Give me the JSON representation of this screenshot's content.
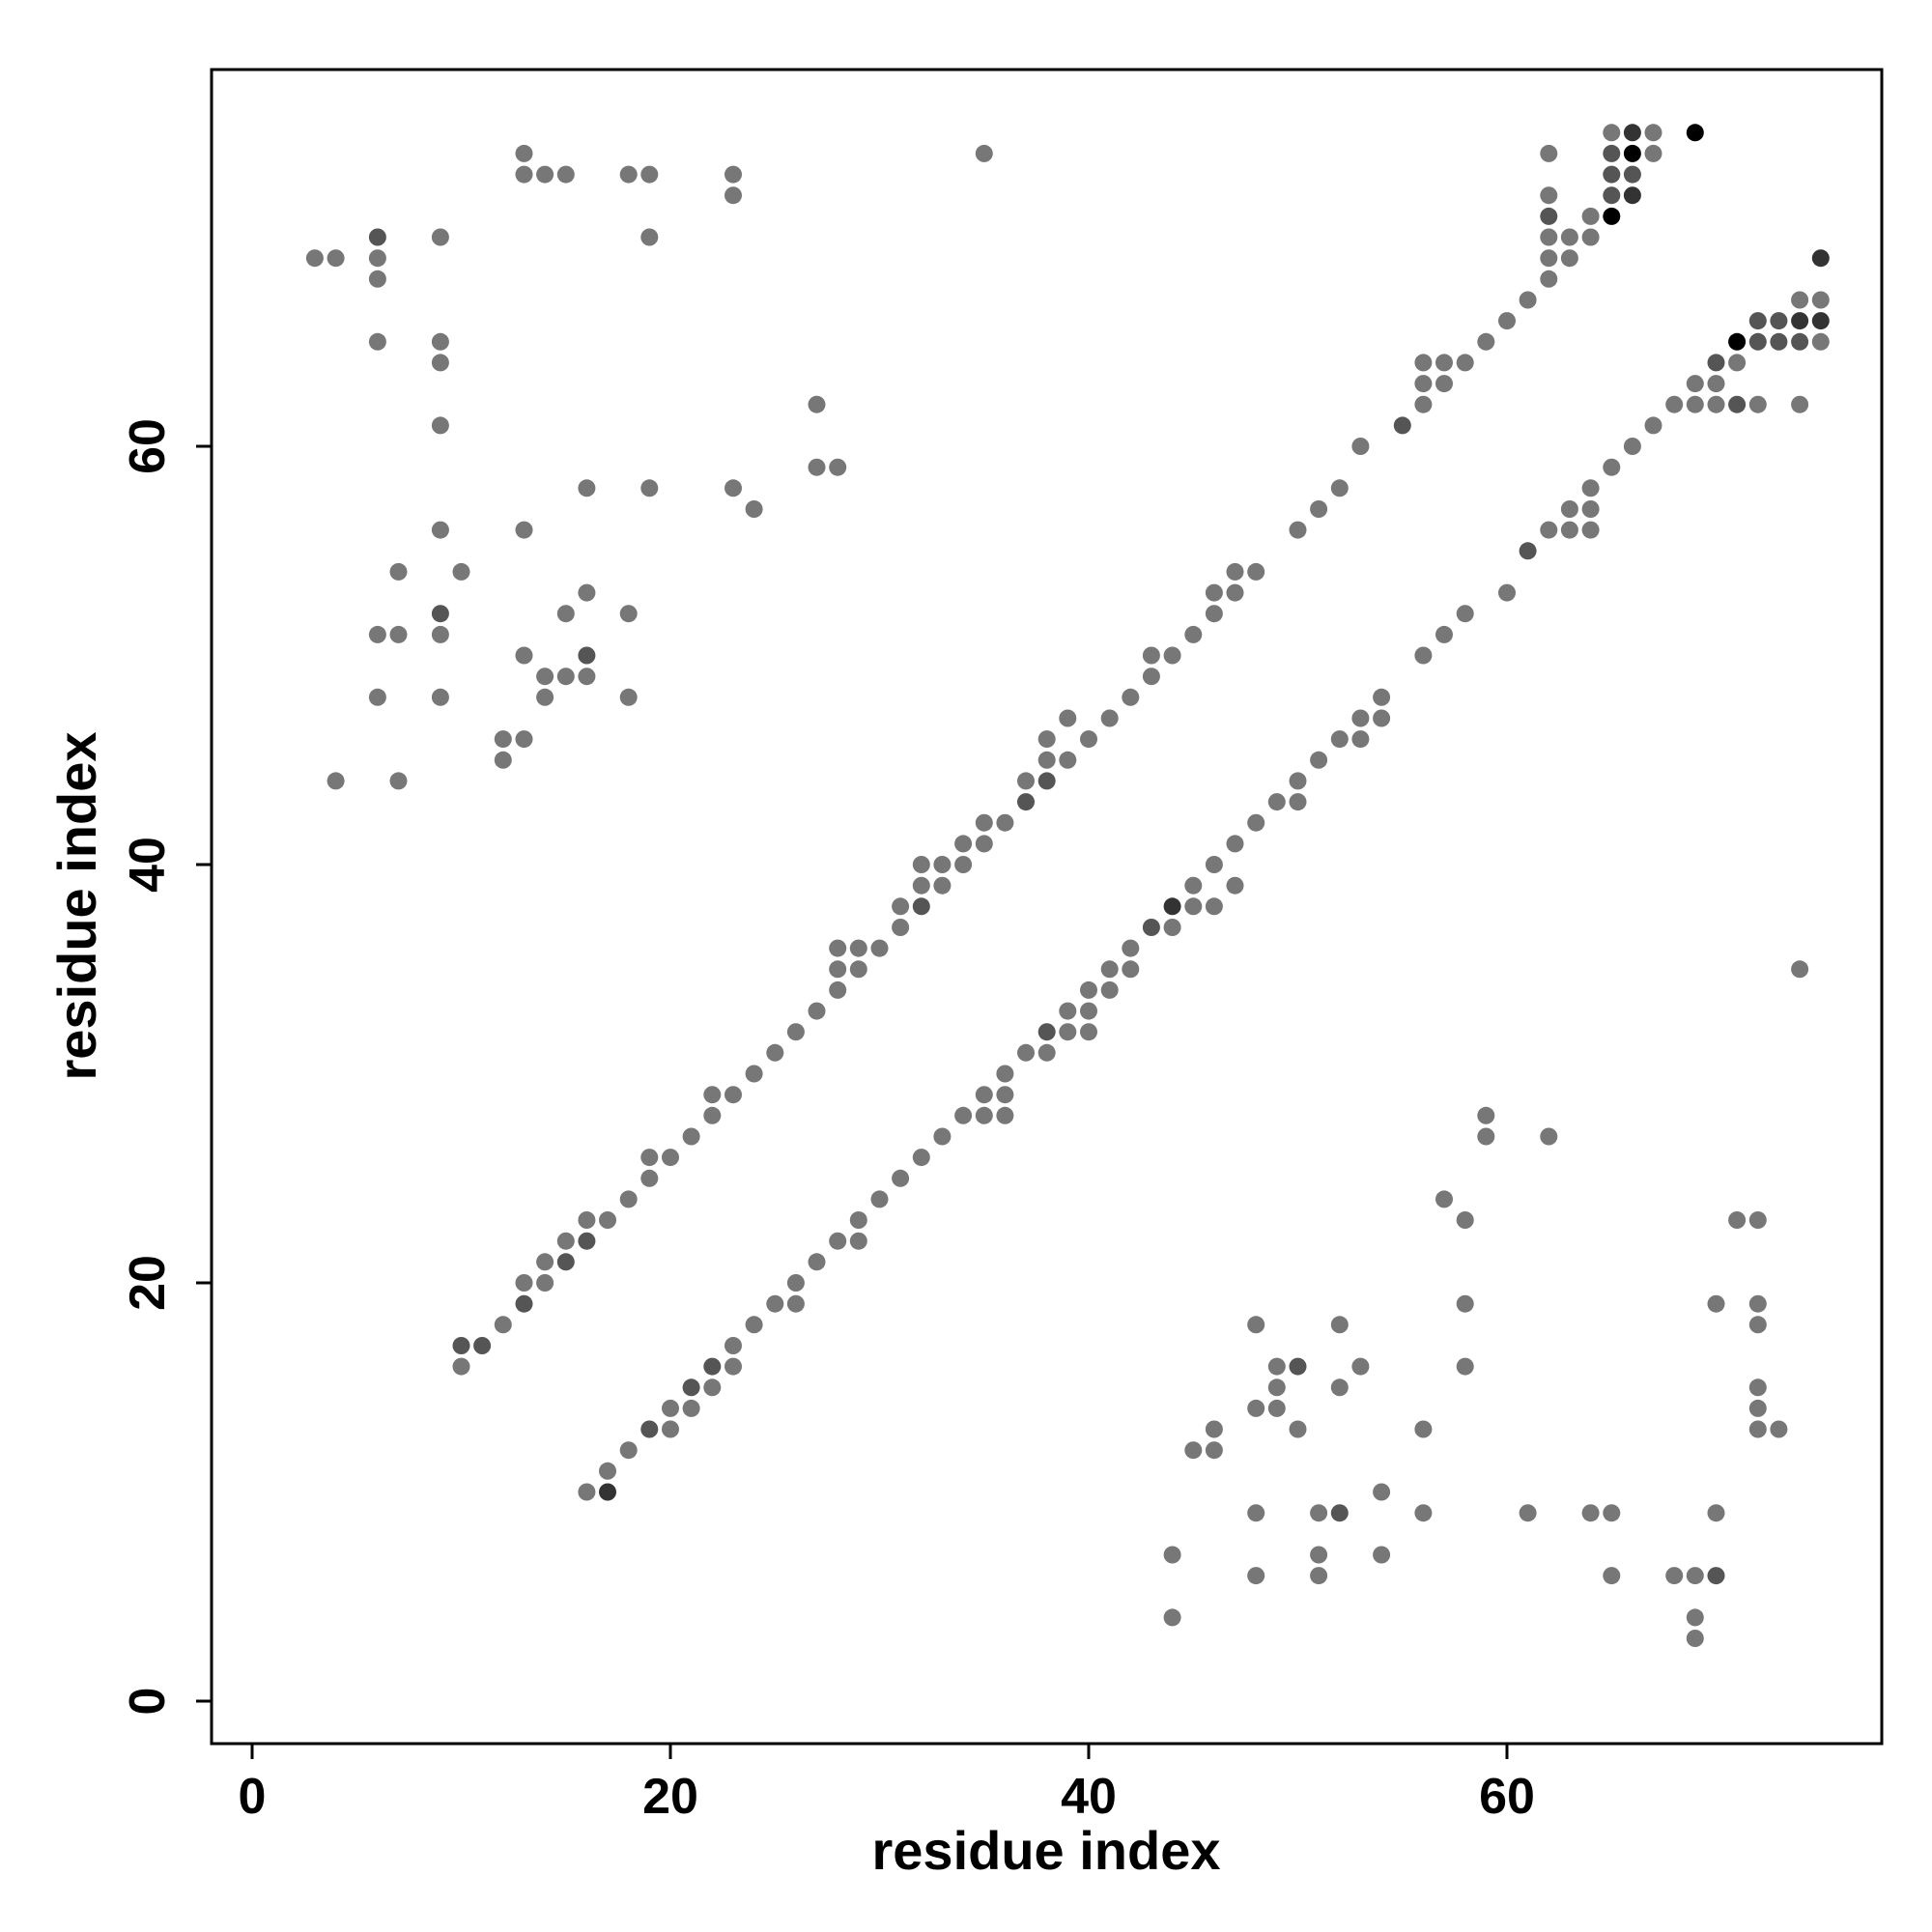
{
  "chart_data": {
    "type": "scatter",
    "title": "",
    "xlabel": "residue index",
    "ylabel": "residue index",
    "xlim": [
      -2,
      76
    ],
    "ylim": [
      -2,
      78
    ],
    "xticks": [
      0,
      20,
      40,
      60
    ],
    "yticks": [
      0,
      20,
      40,
      60
    ],
    "grid": false,
    "legend": "none",
    "colors": {
      "default": "#777777",
      "dark": "#555555",
      "darker": "#333333",
      "darkest": "#000000"
    },
    "points": [
      [
        10,
        17,
        1
      ],
      [
        10,
        16,
        0
      ],
      [
        11,
        17,
        1
      ],
      [
        12,
        18,
        0
      ],
      [
        13,
        19,
        1
      ],
      [
        13,
        20,
        0
      ],
      [
        14,
        20,
        0
      ],
      [
        14,
        21,
        0
      ],
      [
        15,
        21,
        1
      ],
      [
        15,
        22,
        0
      ],
      [
        16,
        22,
        1
      ],
      [
        16,
        23,
        0
      ],
      [
        17,
        23,
        0
      ],
      [
        18,
        24,
        0
      ],
      [
        19,
        25,
        0
      ],
      [
        19,
        26,
        0
      ],
      [
        20,
        26,
        0
      ],
      [
        21,
        27,
        0
      ],
      [
        22,
        28,
        0
      ],
      [
        22,
        29,
        0
      ],
      [
        23,
        29,
        0
      ],
      [
        24,
        30,
        0
      ],
      [
        25,
        31,
        0
      ],
      [
        26,
        32,
        0
      ],
      [
        27,
        33,
        0
      ],
      [
        28,
        34,
        0
      ],
      [
        28,
        35,
        0
      ],
      [
        28,
        36,
        0
      ],
      [
        29,
        35,
        0
      ],
      [
        29,
        36,
        0
      ],
      [
        30,
        36,
        0
      ],
      [
        31,
        37,
        0
      ],
      [
        31,
        38,
        0
      ],
      [
        32,
        38,
        1
      ],
      [
        32,
        39,
        0
      ],
      [
        32,
        40,
        0
      ],
      [
        33,
        39,
        0
      ],
      [
        33,
        40,
        0
      ],
      [
        34,
        40,
        0
      ],
      [
        34,
        41,
        0
      ],
      [
        35,
        41,
        0
      ],
      [
        35,
        42,
        0
      ],
      [
        36,
        42,
        0
      ],
      [
        37,
        43,
        1
      ],
      [
        37,
        44,
        0
      ],
      [
        38,
        44,
        1
      ],
      [
        38,
        45,
        0
      ],
      [
        38,
        46,
        0
      ],
      [
        39,
        45,
        0
      ],
      [
        39,
        47,
        0
      ],
      [
        40,
        46,
        0
      ],
      [
        41,
        47,
        0
      ],
      [
        42,
        48,
        0
      ],
      [
        43,
        49,
        0
      ],
      [
        43,
        50,
        0
      ],
      [
        44,
        50,
        0
      ],
      [
        45,
        51,
        0
      ],
      [
        46,
        52,
        0
      ],
      [
        46,
        53,
        0
      ],
      [
        47,
        53,
        0
      ],
      [
        47,
        54,
        0
      ],
      [
        48,
        54,
        0
      ],
      [
        50,
        56,
        0
      ],
      [
        51,
        57,
        0
      ],
      [
        52,
        58,
        0
      ],
      [
        53,
        60,
        0
      ],
      [
        55,
        61,
        1
      ],
      [
        56,
        62,
        0
      ],
      [
        56,
        63,
        0
      ],
      [
        56,
        64,
        0
      ],
      [
        57,
        63,
        0
      ],
      [
        57,
        64,
        0
      ],
      [
        58,
        64,
        0
      ],
      [
        59,
        65,
        0
      ],
      [
        60,
        66,
        0
      ],
      [
        61,
        67,
        0
      ],
      [
        62,
        68,
        0
      ],
      [
        62,
        69,
        0
      ],
      [
        62,
        70,
        0
      ],
      [
        62,
        71,
        1
      ],
      [
        62,
        72,
        0
      ],
      [
        62,
        74,
        0
      ],
      [
        63,
        69,
        0
      ],
      [
        63,
        70,
        0
      ],
      [
        64,
        70,
        0
      ],
      [
        64,
        71,
        0
      ],
      [
        65,
        71,
        3
      ],
      [
        65,
        72,
        1
      ],
      [
        65,
        73,
        1
      ],
      [
        65,
        74,
        1
      ],
      [
        65,
        75,
        0
      ],
      [
        66,
        72,
        2
      ],
      [
        66,
        73,
        1
      ],
      [
        66,
        74,
        3
      ],
      [
        66,
        75,
        2
      ],
      [
        67,
        74,
        0
      ],
      [
        67,
        75,
        0
      ],
      [
        69,
        75,
        3
      ],
      [
        16,
        10,
        0
      ],
      [
        17,
        10,
        2
      ],
      [
        17,
        11,
        0
      ],
      [
        18,
        12,
        0
      ],
      [
        19,
        13,
        1
      ],
      [
        20,
        13,
        0
      ],
      [
        20,
        14,
        0
      ],
      [
        21,
        14,
        0
      ],
      [
        21,
        15,
        1
      ],
      [
        22,
        15,
        0
      ],
      [
        22,
        16,
        1
      ],
      [
        23,
        16,
        0
      ],
      [
        23,
        17,
        0
      ],
      [
        24,
        18,
        0
      ],
      [
        25,
        19,
        0
      ],
      [
        26,
        19,
        0
      ],
      [
        26,
        20,
        0
      ],
      [
        27,
        21,
        0
      ],
      [
        28,
        22,
        0
      ],
      [
        29,
        22,
        0
      ],
      [
        29,
        23,
        0
      ],
      [
        30,
        24,
        0
      ],
      [
        31,
        25,
        0
      ],
      [
        32,
        26,
        0
      ],
      [
        33,
        27,
        0
      ],
      [
        34,
        28,
        0
      ],
      [
        35,
        28,
        0
      ],
      [
        35,
        29,
        0
      ],
      [
        36,
        28,
        0
      ],
      [
        36,
        29,
        0
      ],
      [
        36,
        30,
        0
      ],
      [
        37,
        31,
        0
      ],
      [
        38,
        31,
        0
      ],
      [
        38,
        32,
        1
      ],
      [
        39,
        32,
        0
      ],
      [
        39,
        33,
        0
      ],
      [
        40,
        32,
        0
      ],
      [
        40,
        33,
        0
      ],
      [
        40,
        34,
        0
      ],
      [
        41,
        34,
        0
      ],
      [
        41,
        35,
        0
      ],
      [
        42,
        35,
        0
      ],
      [
        42,
        36,
        0
      ],
      [
        43,
        37,
        1
      ],
      [
        44,
        37,
        0
      ],
      [
        44,
        38,
        2
      ],
      [
        45,
        38,
        0
      ],
      [
        45,
        39,
        0
      ],
      [
        46,
        38,
        0
      ],
      [
        46,
        40,
        0
      ],
      [
        47,
        39,
        0
      ],
      [
        47,
        41,
        0
      ],
      [
        48,
        42,
        0
      ],
      [
        49,
        43,
        0
      ],
      [
        50,
        43,
        0
      ],
      [
        50,
        44,
        0
      ],
      [
        51,
        45,
        0
      ],
      [
        52,
        46,
        0
      ],
      [
        53,
        46,
        0
      ],
      [
        53,
        47,
        0
      ],
      [
        54,
        47,
        0
      ],
      [
        54,
        48,
        0
      ],
      [
        56,
        50,
        0
      ],
      [
        57,
        51,
        0
      ],
      [
        58,
        52,
        0
      ],
      [
        60,
        53,
        0
      ],
      [
        61,
        55,
        1
      ],
      [
        62,
        56,
        0
      ],
      [
        63,
        56,
        0
      ],
      [
        63,
        57,
        0
      ],
      [
        64,
        56,
        0
      ],
      [
        64,
        57,
        0
      ],
      [
        64,
        58,
        0
      ],
      [
        65,
        59,
        0
      ],
      [
        66,
        60,
        0
      ],
      [
        67,
        61,
        0
      ],
      [
        68,
        62,
        0
      ],
      [
        69,
        62,
        0
      ],
      [
        69,
        63,
        0
      ],
      [
        70,
        62,
        0
      ],
      [
        70,
        63,
        0
      ],
      [
        70,
        64,
        1
      ],
      [
        71,
        62,
        1
      ],
      [
        71,
        64,
        0
      ],
      [
        71,
        65,
        3
      ],
      [
        72,
        62,
        0
      ],
      [
        72,
        65,
        1
      ],
      [
        72,
        66,
        1
      ],
      [
        73,
        65,
        1
      ],
      [
        73,
        66,
        1
      ],
      [
        74,
        62,
        0
      ],
      [
        74,
        65,
        1
      ],
      [
        74,
        66,
        2
      ],
      [
        74,
        67,
        0
      ],
      [
        75,
        65,
        0
      ],
      [
        75,
        66,
        2
      ],
      [
        75,
        67,
        0
      ],
      [
        75,
        69,
        2
      ],
      [
        3,
        69,
        0
      ],
      [
        4,
        69,
        0
      ],
      [
        4,
        44,
        0
      ],
      [
        6,
        48,
        0
      ],
      [
        6,
        51,
        0
      ],
      [
        6,
        65,
        0
      ],
      [
        6,
        68,
        0
      ],
      [
        6,
        69,
        0
      ],
      [
        6,
        70,
        1
      ],
      [
        7,
        44,
        0
      ],
      [
        7,
        51,
        0
      ],
      [
        7,
        54,
        0
      ],
      [
        9,
        48,
        0
      ],
      [
        9,
        51,
        0
      ],
      [
        9,
        52,
        1
      ],
      [
        9,
        56,
        0
      ],
      [
        9,
        61,
        0
      ],
      [
        9,
        64,
        0
      ],
      [
        9,
        65,
        0
      ],
      [
        9,
        70,
        0
      ],
      [
        10,
        54,
        0
      ],
      [
        12,
        45,
        0
      ],
      [
        12,
        46,
        0
      ],
      [
        13,
        46,
        0
      ],
      [
        13,
        50,
        0
      ],
      [
        13,
        56,
        0
      ],
      [
        13,
        73,
        0
      ],
      [
        13,
        74,
        0
      ],
      [
        14,
        48,
        0
      ],
      [
        14,
        49,
        0
      ],
      [
        14,
        73,
        0
      ],
      [
        15,
        49,
        0
      ],
      [
        15,
        52,
        0
      ],
      [
        15,
        73,
        0
      ],
      [
        16,
        49,
        0
      ],
      [
        16,
        50,
        1
      ],
      [
        16,
        53,
        0
      ],
      [
        16,
        58,
        0
      ],
      [
        18,
        48,
        0
      ],
      [
        18,
        52,
        0
      ],
      [
        18,
        73,
        0
      ],
      [
        19,
        58,
        0
      ],
      [
        19,
        70,
        0
      ],
      [
        19,
        73,
        0
      ],
      [
        23,
        58,
        0
      ],
      [
        23,
        72,
        0
      ],
      [
        23,
        73,
        0
      ],
      [
        24,
        57,
        0
      ],
      [
        27,
        59,
        0
      ],
      [
        27,
        62,
        0
      ],
      [
        28,
        59,
        0
      ],
      [
        35,
        74,
        0
      ],
      [
        44,
        4,
        0
      ],
      [
        44,
        7,
        0
      ],
      [
        45,
        12,
        0
      ],
      [
        46,
        12,
        0
      ],
      [
        46,
        13,
        0
      ],
      [
        48,
        6,
        0
      ],
      [
        48,
        9,
        0
      ],
      [
        48,
        14,
        0
      ],
      [
        48,
        18,
        0
      ],
      [
        49,
        14,
        0
      ],
      [
        49,
        15,
        0
      ],
      [
        49,
        16,
        0
      ],
      [
        50,
        13,
        0
      ],
      [
        50,
        16,
        1
      ],
      [
        51,
        6,
        0
      ],
      [
        51,
        7,
        0
      ],
      [
        51,
        9,
        0
      ],
      [
        52,
        9,
        1
      ],
      [
        52,
        15,
        0
      ],
      [
        52,
        18,
        0
      ],
      [
        53,
        16,
        0
      ],
      [
        54,
        7,
        0
      ],
      [
        54,
        10,
        0
      ],
      [
        56,
        9,
        0
      ],
      [
        56,
        13,
        0
      ],
      [
        57,
        24,
        0
      ],
      [
        58,
        16,
        0
      ],
      [
        58,
        19,
        0
      ],
      [
        58,
        23,
        0
      ],
      [
        59,
        27,
        0
      ],
      [
        59,
        28,
        0
      ],
      [
        61,
        9,
        0
      ],
      [
        62,
        27,
        0
      ],
      [
        64,
        9,
        0
      ],
      [
        65,
        6,
        0
      ],
      [
        65,
        9,
        0
      ],
      [
        68,
        6,
        0
      ],
      [
        69,
        3,
        0
      ],
      [
        69,
        4,
        0
      ],
      [
        69,
        6,
        0
      ],
      [
        70,
        6,
        1
      ],
      [
        70,
        9,
        0
      ],
      [
        70,
        19,
        0
      ],
      [
        71,
        23,
        0
      ],
      [
        72,
        13,
        0
      ],
      [
        72,
        14,
        0
      ],
      [
        72,
        15,
        0
      ],
      [
        72,
        18,
        0
      ],
      [
        72,
        19,
        0
      ],
      [
        72,
        23,
        0
      ],
      [
        73,
        13,
        0
      ],
      [
        74,
        35,
        0
      ]
    ]
  }
}
